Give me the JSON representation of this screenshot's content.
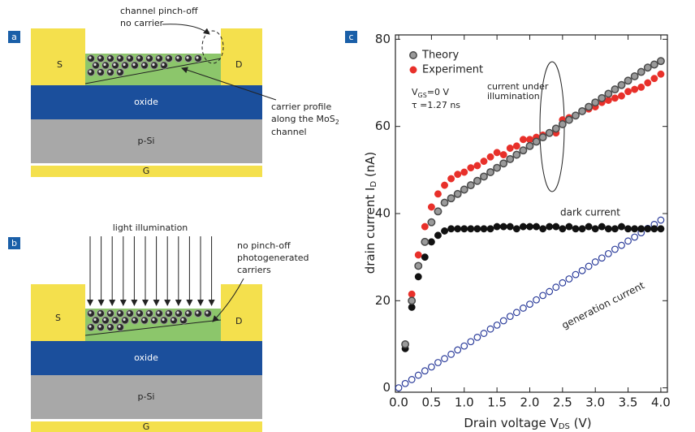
{
  "panels": {
    "a": {
      "label": "a",
      "source": "S",
      "drain": "D",
      "oxide": "oxide",
      "substrate": "p-Si",
      "gate": "G",
      "pinch_off_1": "channel pinch-off",
      "pinch_off_2": "no carrier",
      "profile_1": "carrier profile",
      "profile_2": "along the MoS",
      "profile_2_sub": "2",
      "profile_3": "channel"
    },
    "b": {
      "label": "b",
      "source": "S",
      "drain": "D",
      "oxide": "oxide",
      "substrate": "p-Si",
      "gate": "G",
      "light": "light illumination",
      "note_1": "no pinch-off",
      "note_2": "photogenerated",
      "note_3": "carriers"
    }
  },
  "chart_data": {
    "type": "scatter",
    "panel_label": "c",
    "xlabel": "Drain voltage V",
    "xlabel_sub": "DS",
    "xlabel_unit": " (V)",
    "ylabel": "drain current I",
    "ylabel_sub": "D",
    "ylabel_unit": " (nA)",
    "annotations": {
      "vgs": "V",
      "vgs_sub": "GS",
      "vgs_value": "=0 V",
      "tau": "τ =1.27 ns",
      "illum_1": "current under",
      "illum_2": "illumination"
    },
    "x": [
      0.0,
      0.1,
      0.2,
      0.3,
      0.4,
      0.5,
      0.6,
      0.7,
      0.8,
      0.9,
      1.0,
      1.1,
      1.2,
      1.3,
      1.4,
      1.5,
      1.6,
      1.7,
      1.8,
      1.9,
      2.0,
      2.1,
      2.2,
      2.3,
      2.4,
      2.5,
      2.6,
      2.7,
      2.8,
      2.9,
      3.0,
      3.1,
      3.2,
      3.3,
      3.4,
      3.5,
      3.6,
      3.7,
      3.8,
      3.9,
      4.0
    ],
    "series": [
      {
        "name": "Theory",
        "color": "#9a9a9a",
        "marker": "filled",
        "in_legend": true,
        "values": [
          null,
          10,
          20,
          28,
          33.5,
          38,
          40.5,
          42.5,
          43.5,
          44.5,
          45.5,
          46.5,
          47.5,
          48.5,
          49.5,
          50.5,
          51.5,
          52.5,
          53.5,
          54.5,
          55.5,
          56.5,
          57.5,
          58.5,
          59.5,
          60.5,
          61.5,
          62.5,
          63.5,
          64.5,
          65.5,
          66.5,
          67.5,
          68.5,
          69.5,
          70.5,
          71.5,
          72.5,
          73.5,
          74.2,
          75
        ]
      },
      {
        "name": "Experiment",
        "color": "#e8302a",
        "marker": "filled",
        "in_legend": true,
        "values": [
          null,
          10,
          21.5,
          30.5,
          37,
          41.5,
          44.5,
          46.5,
          48,
          49,
          49.5,
          50.5,
          51,
          52,
          53,
          54,
          53.5,
          55,
          55.5,
          57,
          57,
          57.5,
          58,
          58.5,
          58.5,
          61.5,
          62,
          62.5,
          63.5,
          64,
          64.5,
          65.5,
          66,
          66.5,
          67,
          68,
          68.5,
          69,
          70,
          71,
          72
        ]
      },
      {
        "name": "dark current",
        "color": "#111111",
        "marker": "filled",
        "in_legend": false,
        "values": [
          null,
          9,
          18.5,
          25.5,
          30,
          33.5,
          35,
          36,
          36.5,
          36.5,
          36.5,
          36.5,
          36.5,
          36.5,
          36.5,
          37,
          37,
          37,
          36.5,
          37,
          37,
          37,
          36.5,
          37,
          37,
          36.5,
          37,
          36.5,
          36.5,
          37,
          36.5,
          37,
          36.5,
          36.5,
          37,
          36.5,
          36.5,
          36.5,
          36.5,
          36.5,
          36.5
        ]
      },
      {
        "name": "generation current",
        "color": "#2a3b9a",
        "marker": "open",
        "in_legend": false,
        "values": [
          0,
          1,
          1.9,
          2.9,
          3.9,
          4.8,
          5.8,
          6.7,
          7.7,
          8.7,
          9.6,
          10.6,
          11.6,
          12.5,
          13.5,
          14.4,
          15.4,
          16.4,
          17.3,
          18.3,
          19.2,
          20.2,
          21.2,
          22.1,
          23.1,
          24.1,
          25,
          26,
          26.9,
          27.9,
          28.9,
          29.8,
          30.8,
          31.8,
          32.7,
          33.7,
          34.6,
          35.6,
          36.6,
          37.5,
          38.5
        ]
      }
    ],
    "xlim": [
      -0.05,
      4.1
    ],
    "ylim": [
      -1,
      81
    ],
    "xticks": [
      {
        "value": 0,
        "label": "0.0"
      },
      0.5,
      {
        "value": 1,
        "label": "1.0"
      },
      1.5,
      {
        "value": 2,
        "label": "2.0"
      },
      2.5,
      {
        "value": 3,
        "label": "3.0"
      },
      3.5,
      {
        "value": 4,
        "label": "4.0"
      }
    ],
    "yticks": [
      0,
      20,
      40,
      60,
      80
    ]
  }
}
